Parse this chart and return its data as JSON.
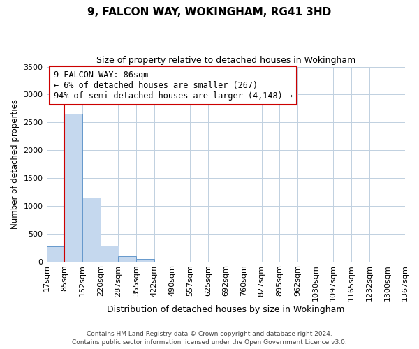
{
  "title": "9, FALCON WAY, WOKINGHAM, RG41 3HD",
  "subtitle": "Size of property relative to detached houses in Wokingham",
  "xlabel": "Distribution of detached houses by size in Wokingham",
  "ylabel": "Number of detached properties",
  "bar_values": [
    270,
    2650,
    1150,
    280,
    90,
    40,
    0,
    0,
    0,
    0,
    0,
    0,
    0,
    0,
    0,
    0,
    0,
    0,
    0,
    0
  ],
  "bin_edges": [
    17,
    85,
    152,
    220,
    287,
    355,
    422,
    490,
    557,
    625,
    692,
    760,
    827,
    895,
    962,
    1030,
    1097,
    1165,
    1232,
    1300,
    1367
  ],
  "tick_labels": [
    "17sqm",
    "85sqm",
    "152sqm",
    "220sqm",
    "287sqm",
    "355sqm",
    "422sqm",
    "490sqm",
    "557sqm",
    "625sqm",
    "692sqm",
    "760sqm",
    "827sqm",
    "895sqm",
    "962sqm",
    "1030sqm",
    "1097sqm",
    "1165sqm",
    "1232sqm",
    "1300sqm",
    "1367sqm"
  ],
  "ylim": [
    0,
    3500
  ],
  "yticks": [
    0,
    500,
    1000,
    1500,
    2000,
    2500,
    3000,
    3500
  ],
  "bar_color": "#c5d8ee",
  "bar_edge_color": "#6699cc",
  "vline_x": 85,
  "vline_color": "#cc0000",
  "annotation_title": "9 FALCON WAY: 86sqm",
  "annotation_line1": "← 6% of detached houses are smaller (267)",
  "annotation_line2": "94% of semi-detached houses are larger (4,148) →",
  "annotation_box_color": "#ffffff",
  "annotation_box_edge": "#cc0000",
  "footer1": "Contains HM Land Registry data © Crown copyright and database right 2024.",
  "footer2": "Contains public sector information licensed under the Open Government Licence v3.0.",
  "background_color": "#ffffff",
  "grid_color": "#c0d0e0"
}
